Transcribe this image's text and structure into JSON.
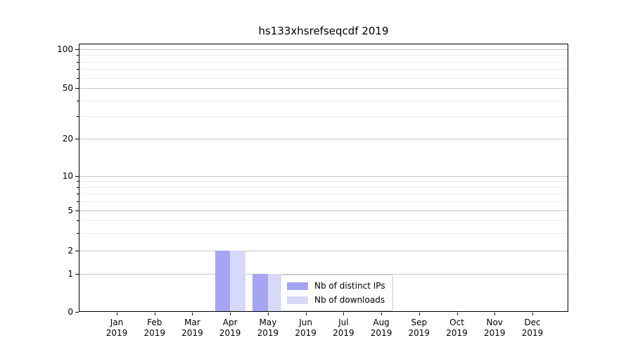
{
  "chart_data": {
    "type": "bar",
    "title": "hs133xhsrefseqcdf 2019",
    "categories": [
      "Jan",
      "Feb",
      "Mar",
      "Apr",
      "May",
      "Jun",
      "Jul",
      "Aug",
      "Sep",
      "Oct",
      "Nov",
      "Dec"
    ],
    "year_label": "2019",
    "series": [
      {
        "name": "Nb of distinct IPs",
        "color": "#a5a5f4",
        "values": [
          0,
          0,
          0,
          2,
          1,
          0,
          0,
          0,
          0,
          0,
          0,
          0
        ]
      },
      {
        "name": "Nb of downloads",
        "color": "#d8d8fa",
        "values": [
          0,
          0,
          0,
          2,
          1,
          0,
          0,
          0,
          0,
          0,
          0,
          0
        ]
      }
    ],
    "y_axis": {
      "scale": "symlog",
      "ticks": [
        0,
        1,
        2,
        5,
        10,
        20,
        50,
        100
      ],
      "minor_ticks": [
        3,
        4,
        6,
        7,
        8,
        9,
        30,
        40,
        60,
        70,
        80,
        90
      ],
      "range": [
        0,
        100
      ]
    },
    "xlabel": "",
    "ylabel": "",
    "grid": true,
    "legend_position": "lower right of center",
    "colors": {
      "major_grid": "#c6c6c6",
      "minor_grid": "#ececec",
      "spine": "#000000",
      "background": "#ffffff"
    }
  }
}
